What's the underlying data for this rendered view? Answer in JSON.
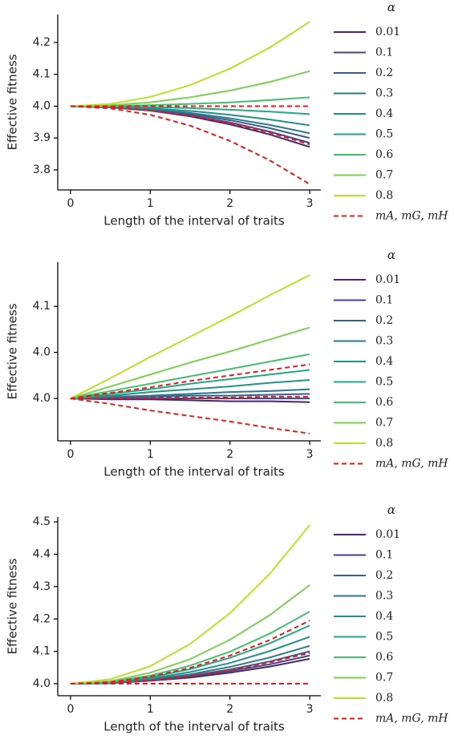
{
  "chart_data": [
    {
      "type": "line",
      "xlabel": "Length of the interval of traits",
      "ylabel": "Effective fitness",
      "legend_title": "α",
      "x": [
        0,
        0.5,
        1,
        1.5,
        2,
        2.5,
        3
      ],
      "xlim": [
        -0.16,
        3.14
      ],
      "xticks": [
        0,
        1,
        2,
        3
      ],
      "ylim": [
        3.737,
        4.288
      ],
      "yticks": [
        3.8,
        3.9,
        {
          "value": 4,
          "label": "4.0"
        },
        4.1,
        4.2
      ],
      "series": [
        {
          "name": "0.01",
          "color": "#482475",
          "values": [
            4,
            3.996,
            3.986,
            3.968,
            3.943,
            3.911,
            3.872
          ]
        },
        {
          "name": "0.1",
          "color": "#414487",
          "values": [
            4,
            3.997,
            3.987,
            3.971,
            3.949,
            3.92,
            3.885
          ]
        },
        {
          "name": "0.2",
          "color": "#355f8d",
          "values": [
            4,
            3.997,
            3.989,
            3.975,
            3.956,
            3.931,
            3.9
          ]
        },
        {
          "name": "0.3",
          "color": "#2a788e",
          "values": [
            4,
            3.998,
            3.991,
            3.979,
            3.962,
            3.941,
            3.915
          ]
        },
        {
          "name": "0.4",
          "color": "#21918c",
          "values": [
            4,
            3.998,
            3.993,
            3.985,
            3.973,
            3.958,
            3.94
          ]
        },
        {
          "name": "0.5",
          "color": "#22a884",
          "values": [
            4,
            3.999,
            3.997,
            3.994,
            3.989,
            3.983,
            3.975
          ]
        },
        {
          "name": "0.6",
          "color": "#44bf70",
          "values": [
            4,
            4.001,
            4.003,
            4.007,
            4.012,
            4.019,
            4.028
          ]
        },
        {
          "name": "0.7",
          "color": "#7ad151",
          "values": [
            4,
            4.003,
            4.012,
            4.028,
            4.049,
            4.076,
            4.11
          ]
        },
        {
          "name": "0.8",
          "color": "#bddf26",
          "values": [
            4,
            4.007,
            4.029,
            4.066,
            4.118,
            4.184,
            4.265
          ]
        },
        {
          "name": "mA, mG, mH",
          "color": "#e41a1c",
          "dashed": true,
          "values": [
            4,
            4,
            4,
            4,
            4,
            4,
            4
          ]
        },
        {
          "color": "#e41a1c",
          "dashed": true,
          "values": [
            4,
            3.997,
            3.987,
            3.97,
            3.947,
            3.917,
            3.88
          ]
        },
        {
          "color": "#e41a1c",
          "dashed": true,
          "values": [
            4,
            3.993,
            3.973,
            3.939,
            3.891,
            3.83,
            3.755
          ]
        }
      ]
    },
    {
      "type": "line",
      "xlabel": "Length of the interval of traits",
      "ylabel": "Effective fitness",
      "legend_title": "α",
      "x": [
        0,
        0.5,
        1,
        1.5,
        2,
        2.5,
        3
      ],
      "xlim": [
        -0.16,
        3.14
      ],
      "xticks": [
        0,
        1,
        2,
        3
      ],
      "ylim": [
        3.954,
        4.148
      ],
      "yticks": [
        {
          "value": 4,
          "label": "4.0"
        },
        {
          "value": 4.05,
          "label": "4.0"
        },
        4.1
      ],
      "series": [
        {
          "name": "0.01",
          "color": "#482475",
          "values": [
            4,
            3.999,
            3.999,
            3.998,
            3.997,
            3.997,
            3.996
          ]
        },
        {
          "name": "0.1",
          "color": "#414487",
          "values": [
            4,
            4,
            4,
            4,
            4,
            4,
            4
          ]
        },
        {
          "name": "0.2",
          "color": "#355f8d",
          "values": [
            4,
            4.001,
            4.002,
            4.003,
            4.003,
            4.004,
            4.005
          ]
        },
        {
          "name": "0.3",
          "color": "#2a788e",
          "values": [
            4,
            4.002,
            4.003,
            4.005,
            4.007,
            4.008,
            4.01
          ]
        },
        {
          "name": "0.4",
          "color": "#21918c",
          "values": [
            4,
            4.003,
            4.007,
            4.01,
            4.013,
            4.017,
            4.02
          ]
        },
        {
          "name": "0.5",
          "color": "#22a884",
          "values": [
            4,
            4.005,
            4.01,
            4.016,
            4.021,
            4.026,
            4.031
          ]
        },
        {
          "name": "0.6",
          "color": "#44bf70",
          "values": [
            4,
            4.008,
            4.016,
            4.024,
            4.032,
            4.04,
            4.048
          ]
        },
        {
          "name": "0.7",
          "color": "#7ad151",
          "values": [
            4,
            4.013,
            4.026,
            4.039,
            4.051,
            4.064,
            4.077
          ]
        },
        {
          "name": "0.8",
          "color": "#bddf26",
          "values": [
            4,
            4.022,
            4.045,
            4.067,
            4.089,
            4.112,
            4.134
          ]
        },
        {
          "name": "mA, mG, mH",
          "color": "#e41a1c",
          "dashed": true,
          "values": [
            4,
            4.006,
            4.012,
            4.019,
            4.025,
            4.031,
            4.037
          ]
        },
        {
          "color": "#e41a1c",
          "dashed": true,
          "values": [
            4,
            4,
            4.001,
            4.001,
            4.001,
            4.002,
            4.002
          ]
        },
        {
          "color": "#e41a1c",
          "dashed": true,
          "values": [
            4,
            3.994,
            3.987,
            3.981,
            3.975,
            3.968,
            3.962
          ]
        }
      ]
    },
    {
      "type": "line",
      "xlabel": "Length of the interval of traits",
      "ylabel": "Effective fitness",
      "legend_title": "α",
      "x": [
        0,
        0.5,
        1,
        1.5,
        2,
        2.5,
        3
      ],
      "xlim": [
        -0.16,
        3.14
      ],
      "xticks": [
        0,
        1,
        2,
        3
      ],
      "ylim": [
        3.963,
        4.515
      ],
      "yticks": [
        {
          "value": 4,
          "label": "4.0"
        },
        4.1,
        4.2,
        4.3,
        4.4,
        4.5
      ],
      "series": [
        {
          "name": "0.01",
          "color": "#482475",
          "values": [
            4,
            4.002,
            4.009,
            4.019,
            4.034,
            4.053,
            4.077
          ]
        },
        {
          "name": "0.1",
          "color": "#414487",
          "values": [
            4,
            4.002,
            4.01,
            4.022,
            4.039,
            4.06,
            4.087
          ]
        },
        {
          "name": "0.2",
          "color": "#355f8d",
          "values": [
            4,
            4.003,
            4.011,
            4.025,
            4.044,
            4.069,
            4.1
          ]
        },
        {
          "name": "0.3",
          "color": "#2a788e",
          "values": [
            4,
            4.003,
            4.013,
            4.029,
            4.052,
            4.081,
            4.117
          ]
        },
        {
          "name": "0.4",
          "color": "#21918c",
          "values": [
            4,
            4.004,
            4.016,
            4.036,
            4.064,
            4.101,
            4.145
          ]
        },
        {
          "name": "0.5",
          "color": "#22a884",
          "values": [
            4,
            4.005,
            4.02,
            4.045,
            4.08,
            4.125,
            4.18
          ]
        },
        {
          "name": "0.6",
          "color": "#44bf70",
          "values": [
            4,
            4.006,
            4.025,
            4.056,
            4.099,
            4.155,
            4.223
          ]
        },
        {
          "name": "0.7",
          "color": "#7ad151",
          "values": [
            4,
            4.008,
            4.034,
            4.076,
            4.136,
            4.212,
            4.305
          ]
        },
        {
          "name": "0.8",
          "color": "#bddf26",
          "values": [
            4,
            4.014,
            4.054,
            4.123,
            4.218,
            4.34,
            4.49
          ]
        },
        {
          "name": "mA, mG, mH",
          "color": "#e41a1c",
          "dashed": true,
          "values": [
            4,
            4.005,
            4.022,
            4.049,
            4.087,
            4.135,
            4.195
          ]
        },
        {
          "color": "#e41a1c",
          "dashed": true,
          "values": [
            4,
            4.003,
            4.011,
            4.024,
            4.042,
            4.066,
            4.095
          ]
        },
        {
          "color": "#e41a1c",
          "dashed": true,
          "values": [
            4,
            4,
            4,
            4,
            4,
            4,
            4
          ]
        }
      ]
    }
  ]
}
